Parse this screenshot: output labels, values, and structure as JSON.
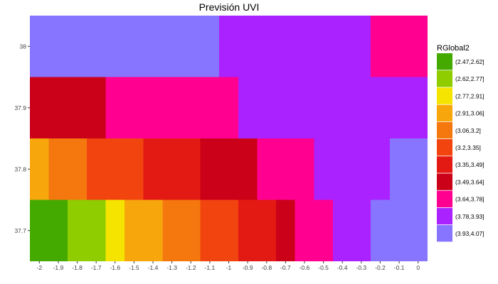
{
  "chart_data": {
    "type": "heatmap",
    "title": "Previsión UVI",
    "xlabel": "",
    "ylabel": "",
    "xlim": [
      -2.05,
      0.05
    ],
    "ylim": [
      37.65,
      38.05
    ],
    "x_ticks": [
      -2,
      -1.9,
      -1.8,
      -1.7,
      -1.6,
      -1.5,
      -1.4,
      -1.3,
      -1.2,
      -1.1,
      -1,
      -0.9,
      -0.8,
      -0.7,
      -0.6,
      -0.5,
      -0.4,
      -0.3,
      -0.2,
      -0.1,
      0
    ],
    "x_tick_labels": [
      "-2",
      "-1.9",
      "-1.8",
      "-1.7",
      "-1.6",
      "-1.5",
      "-1.4",
      "-1.3",
      "-1.2",
      "-1.1",
      "-1",
      "-0.9",
      "-0.8",
      "-0.7",
      "-0.6",
      "-0.5",
      "-0.4",
      "-0.3",
      "-0.2",
      "-0.1",
      "0"
    ],
    "y_ticks": [
      37.7,
      37.8,
      37.9,
      38
    ],
    "y_tick_labels": [
      "37.7",
      "37.8",
      "37.9",
      "38"
    ],
    "grid": true,
    "legend": {
      "title": "RGlobal2",
      "position": "right",
      "entries": [
        {
          "label": "(2.47,2.62]",
          "color": "#44AA00"
        },
        {
          "label": "(2.62,2.77]",
          "color": "#8FCC00"
        },
        {
          "label": "(2.77,2.91]",
          "color": "#F5E400"
        },
        {
          "label": "(2.91,3.06]",
          "color": "#F7A70C"
        },
        {
          "label": "(3.06,3.2]",
          "color": "#F4780E"
        },
        {
          "label": "(3.2,3.35]",
          "color": "#F2440F"
        },
        {
          "label": "(3.35,3.49]",
          "color": "#E31A14"
        },
        {
          "label": "(3.49,3.64]",
          "color": "#CB0019"
        },
        {
          "label": "(3.64,3.78]",
          "color": "#FF0090"
        },
        {
          "label": "(3.78,3.93]",
          "color": "#AA22FF"
        },
        {
          "label": "(3.93,4.07]",
          "color": "#8775FF"
        }
      ]
    },
    "cells": [
      {
        "x0": -2.05,
        "x1": -1.05,
        "y0": 37.95,
        "y1": 38.05,
        "class": "(3.93,4.07]"
      },
      {
        "x0": -1.05,
        "x1": -0.25,
        "y0": 37.95,
        "y1": 38.05,
        "class": "(3.78,3.93]"
      },
      {
        "x0": -0.25,
        "x1": 0.05,
        "y0": 37.95,
        "y1": 38.05,
        "class": "(3.64,3.78]"
      },
      {
        "x0": -2.05,
        "x1": -1.65,
        "y0": 37.85,
        "y1": 37.95,
        "class": "(3.49,3.64]"
      },
      {
        "x0": -1.65,
        "x1": -0.95,
        "y0": 37.85,
        "y1": 37.95,
        "class": "(3.64,3.78]"
      },
      {
        "x0": -0.95,
        "x1": 0.05,
        "y0": 37.85,
        "y1": 37.95,
        "class": "(3.78,3.93]"
      },
      {
        "x0": -2.05,
        "x1": -1.95,
        "y0": 37.75,
        "y1": 37.85,
        "class": "(2.91,3.06]"
      },
      {
        "x0": -1.95,
        "x1": -1.75,
        "y0": 37.75,
        "y1": 37.85,
        "class": "(3.06,3.2]"
      },
      {
        "x0": -1.75,
        "x1": -1.45,
        "y0": 37.75,
        "y1": 37.85,
        "class": "(3.2,3.35]"
      },
      {
        "x0": -1.45,
        "x1": -1.15,
        "y0": 37.75,
        "y1": 37.85,
        "class": "(3.35,3.49]"
      },
      {
        "x0": -1.15,
        "x1": -0.85,
        "y0": 37.75,
        "y1": 37.85,
        "class": "(3.49,3.64]"
      },
      {
        "x0": -0.85,
        "x1": -0.55,
        "y0": 37.75,
        "y1": 37.85,
        "class": "(3.64,3.78]"
      },
      {
        "x0": -0.55,
        "x1": -0.15,
        "y0": 37.75,
        "y1": 37.85,
        "class": "(3.78,3.93]"
      },
      {
        "x0": -0.15,
        "x1": 0.05,
        "y0": 37.75,
        "y1": 37.85,
        "class": "(3.93,4.07]"
      },
      {
        "x0": -2.05,
        "x1": -1.85,
        "y0": 37.65,
        "y1": 37.75,
        "class": "(2.47,2.62]"
      },
      {
        "x0": -1.85,
        "x1": -1.65,
        "y0": 37.65,
        "y1": 37.75,
        "class": "(2.62,2.77]"
      },
      {
        "x0": -1.65,
        "x1": -1.55,
        "y0": 37.65,
        "y1": 37.75,
        "class": "(2.77,2.91]"
      },
      {
        "x0": -1.55,
        "x1": -1.35,
        "y0": 37.65,
        "y1": 37.75,
        "class": "(2.91,3.06]"
      },
      {
        "x0": -1.35,
        "x1": -1.15,
        "y0": 37.65,
        "y1": 37.75,
        "class": "(3.06,3.2]"
      },
      {
        "x0": -1.15,
        "x1": -0.95,
        "y0": 37.65,
        "y1": 37.75,
        "class": "(3.2,3.35]"
      },
      {
        "x0": -0.95,
        "x1": -0.75,
        "y0": 37.65,
        "y1": 37.75,
        "class": "(3.35,3.49]"
      },
      {
        "x0": -0.75,
        "x1": -0.65,
        "y0": 37.65,
        "y1": 37.75,
        "class": "(3.49,3.64]"
      },
      {
        "x0": -0.65,
        "x1": -0.45,
        "y0": 37.65,
        "y1": 37.75,
        "class": "(3.64,3.78]"
      },
      {
        "x0": -0.45,
        "x1": -0.25,
        "y0": 37.65,
        "y1": 37.75,
        "class": "(3.78,3.93]"
      },
      {
        "x0": -0.25,
        "x1": 0.05,
        "y0": 37.65,
        "y1": 37.75,
        "class": "(3.93,4.07]"
      }
    ]
  }
}
